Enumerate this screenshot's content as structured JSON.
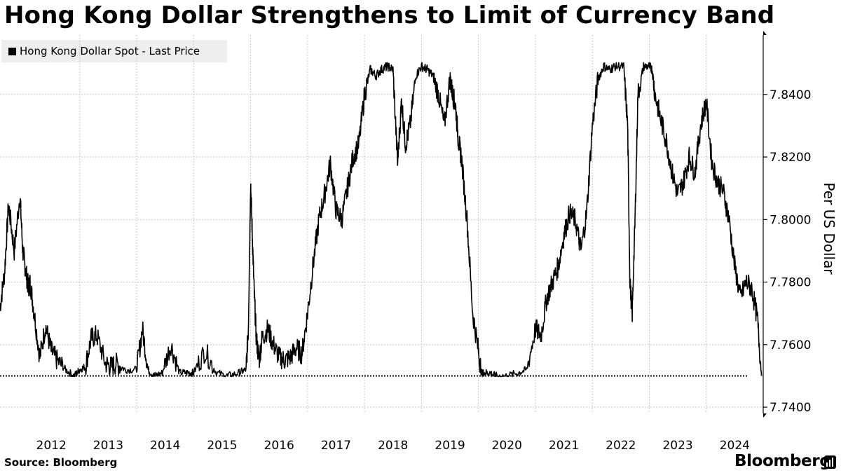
{
  "title": "Hong Kong Dollar Strengthens to Limit of Currency Band",
  "source": "Source: Bloomberg",
  "brand": "Bloomberg",
  "colors": {
    "line": "#000000",
    "grid": "#c8c8c8",
    "legend_bg": "#eeeeee"
  },
  "chart_data": {
    "type": "line",
    "title": "Hong Kong Dollar Strengthens to Limit of Currency Band",
    "ylabel": "Per US Dollar",
    "xlabel": "",
    "ylim": [
      7.738,
      7.859
    ],
    "xlim": [
      2011.6,
      2025.0
    ],
    "y_ticks": [
      7.74,
      7.76,
      7.78,
      7.8,
      7.82,
      7.84
    ],
    "y_tick_labels": [
      "7.7400",
      "7.7600",
      "7.7800",
      "7.8000",
      "7.8200",
      "7.8400"
    ],
    "x_tick_labels": [
      "2012",
      "2013",
      "2014",
      "2015",
      "2016",
      "2017",
      "2018",
      "2019",
      "2020",
      "2021",
      "2022",
      "2023",
      "2024"
    ],
    "x_label_positions": [
      2012.5,
      2013.5,
      2014.5,
      2015.5,
      2016.5,
      2017.5,
      2018.5,
      2019.5,
      2020.5,
      2021.5,
      2022.5,
      2023.5,
      2024.5
    ],
    "x_gridlines": [
      2013,
      2014,
      2015,
      2016,
      2017,
      2018,
      2019,
      2020,
      2021,
      2022,
      2023,
      2024
    ],
    "y_axis_side": "right",
    "grid": true,
    "legend_position": "top-left",
    "reference_line": {
      "label": "",
      "value": 7.75,
      "style": "dotted"
    },
    "series": [
      {
        "name": "Hong Kong Dollar Spot - Last Price",
        "x": [
          2011.6,
          2011.68,
          2011.75,
          2011.85,
          2011.95,
          2012.0,
          2012.05,
          2012.1,
          2012.13,
          2012.2,
          2012.3,
          2012.4,
          2012.5,
          2012.6,
          2012.75,
          2012.9,
          2013.0,
          2013.1,
          2013.2,
          2013.3,
          2013.45,
          2013.55,
          2013.65,
          2013.8,
          2014.0,
          2014.1,
          2014.2,
          2014.3,
          2014.45,
          2014.6,
          2014.75,
          2014.9,
          2015.0,
          2015.2,
          2015.4,
          2015.6,
          2015.8,
          2015.92,
          2015.96,
          2016.0,
          2016.03,
          2016.06,
          2016.1,
          2016.15,
          2016.2,
          2016.3,
          2016.4,
          2016.5,
          2016.6,
          2016.7,
          2016.8,
          2016.9,
          2017.0,
          2017.1,
          2017.2,
          2017.3,
          2017.4,
          2017.5,
          2017.6,
          2017.7,
          2017.8,
          2017.9,
          2018.0,
          2018.1,
          2018.2,
          2018.3,
          2018.4,
          2018.5,
          2018.58,
          2018.65,
          2018.72,
          2018.8,
          2018.9,
          2019.0,
          2019.1,
          2019.2,
          2019.3,
          2019.4,
          2019.5,
          2019.55,
          2019.6,
          2019.65,
          2019.7,
          2019.8,
          2019.9,
          2020.0,
          2020.05,
          2020.1,
          2020.2,
          2020.3,
          2020.5,
          2020.7,
          2020.85,
          2021.0,
          2021.1,
          2021.2,
          2021.3,
          2021.4,
          2021.5,
          2021.6,
          2021.7,
          2021.8,
          2021.9,
          2022.0,
          2022.1,
          2022.2,
          2022.3,
          2022.4,
          2022.55,
          2022.62,
          2022.66,
          2022.7,
          2022.75,
          2022.8,
          2022.9,
          2023.0,
          2023.05,
          2023.1,
          2023.2,
          2023.3,
          2023.4,
          2023.5,
          2023.6,
          2023.7,
          2023.8,
          2023.9,
          2024.0,
          2024.1,
          2024.2,
          2024.3,
          2024.4,
          2024.5,
          2024.6,
          2024.7,
          2024.8,
          2024.9,
          2024.97
        ],
        "values": [
          7.772,
          7.783,
          7.805,
          7.79,
          7.808,
          7.79,
          7.784,
          7.778,
          7.78,
          7.77,
          7.756,
          7.766,
          7.758,
          7.755,
          7.752,
          7.75,
          7.752,
          7.753,
          7.762,
          7.763,
          7.754,
          7.753,
          7.754,
          7.752,
          7.752,
          7.765,
          7.752,
          7.75,
          7.751,
          7.76,
          7.751,
          7.751,
          7.751,
          7.758,
          7.751,
          7.75,
          7.751,
          7.752,
          7.765,
          7.812,
          7.795,
          7.778,
          7.762,
          7.755,
          7.762,
          7.765,
          7.76,
          7.756,
          7.755,
          7.756,
          7.759,
          7.757,
          7.77,
          7.786,
          7.8,
          7.808,
          7.818,
          7.803,
          7.8,
          7.81,
          7.82,
          7.824,
          7.84,
          7.848,
          7.846,
          7.848,
          7.849,
          7.848,
          7.818,
          7.838,
          7.824,
          7.83,
          7.846,
          7.849,
          7.848,
          7.846,
          7.84,
          7.83,
          7.845,
          7.84,
          7.836,
          7.825,
          7.82,
          7.8,
          7.77,
          7.758,
          7.751,
          7.751,
          7.751,
          7.75,
          7.75,
          7.751,
          7.752,
          7.765,
          7.763,
          7.775,
          7.78,
          7.785,
          7.795,
          7.802,
          7.8,
          7.79,
          7.802,
          7.83,
          7.845,
          7.849,
          7.848,
          7.849,
          7.849,
          7.83,
          7.78,
          7.77,
          7.8,
          7.84,
          7.849,
          7.849,
          7.848,
          7.84,
          7.832,
          7.825,
          7.815,
          7.808,
          7.812,
          7.82,
          7.815,
          7.83,
          7.838,
          7.818,
          7.812,
          7.809,
          7.8,
          7.785,
          7.775,
          7.78,
          7.778,
          7.768,
          7.75
        ]
      }
    ]
  }
}
